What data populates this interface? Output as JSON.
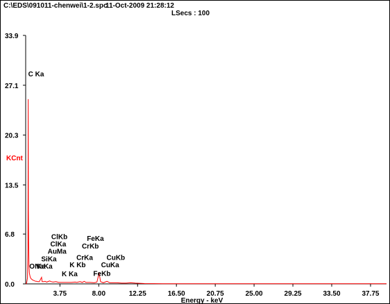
{
  "header": {
    "file_path": "C:\\EDS\\091011-chenwei\\1-2.spc",
    "timestamp": "11-Oct-2009 21:28:12",
    "lsecs": "LSecs : 100"
  },
  "colors": {
    "spectrum": "#ff0000",
    "ylabel": "#ff0000",
    "axis": "#000000",
    "text": "#000000"
  },
  "chart_data": {
    "type": "line",
    "title": "",
    "xlabel": "Energy - keV",
    "ylabel": "KCnt",
    "xlim": [
      0,
      39.5
    ],
    "ylim": [
      0,
      33.9
    ],
    "xticks": [
      "3.75",
      "8.00",
      "12.25",
      "16.50",
      "20.75",
      "25.00",
      "29.25",
      "33.50",
      "37.75"
    ],
    "xtick_values": [
      3.75,
      8.0,
      12.25,
      16.5,
      20.75,
      25.0,
      29.25,
      33.5,
      37.75
    ],
    "yticks": [
      "0.0",
      "6.8",
      "13.5",
      "20.3",
      "27.1",
      "33.9"
    ],
    "ytick_values": [
      0.0,
      6.8,
      13.5,
      20.3,
      27.1,
      33.9
    ],
    "series": [
      {
        "x": [
          0.0,
          0.1,
          0.2,
          0.25,
          0.28,
          0.3,
          0.33,
          0.36,
          0.4,
          0.45,
          0.5,
          0.55,
          0.6,
          0.7,
          0.8,
          0.9,
          1.0,
          1.1,
          1.2,
          1.3,
          1.5,
          1.74,
          1.8,
          2.0,
          2.12,
          2.3,
          2.62,
          2.8,
          3.0,
          3.31,
          3.6,
          4.0,
          4.5,
          5.0,
          5.41,
          5.6,
          5.95,
          6.2,
          6.4,
          6.6,
          7.06,
          7.5,
          7.8,
          8.04,
          8.2,
          8.5,
          8.9,
          9.2,
          9.6,
          10.0,
          10.5,
          11.0,
          11.5,
          12.0,
          13.0,
          15.0,
          20.0,
          25.0,
          30.0,
          35.0,
          39.5
        ],
        "y": [
          0.0,
          0.1,
          0.8,
          5.0,
          25.2,
          10.0,
          5.5,
          2.5,
          1.5,
          1.2,
          0.9,
          0.8,
          0.7,
          0.6,
          0.5,
          0.45,
          0.4,
          0.35,
          0.35,
          0.3,
          0.3,
          0.9,
          0.3,
          0.3,
          0.35,
          0.25,
          0.4,
          0.3,
          0.25,
          0.3,
          0.2,
          0.2,
          0.2,
          0.2,
          0.25,
          0.2,
          0.3,
          0.2,
          0.35,
          0.2,
          0.2,
          0.15,
          0.25,
          1.5,
          0.3,
          0.15,
          0.35,
          0.15,
          0.15,
          0.15,
          0.1,
          0.1,
          0.15,
          0.1,
          0.05,
          0.03,
          0.02,
          0.02,
          0.02,
          0.02,
          0.02
        ]
      }
    ],
    "peak_labels": [
      {
        "text": "C Ka",
        "x": 0.28,
        "y": 28.3
      },
      {
        "text": "ClKb",
        "x": 2.8,
        "y": 6.1
      },
      {
        "text": "ClKa",
        "x": 2.7,
        "y": 5.1
      },
      {
        "text": "AuMa",
        "x": 2.4,
        "y": 4.1
      },
      {
        "text": "SiKa",
        "x": 1.7,
        "y": 3.1
      },
      {
        "text": "O Ka",
        "x": 0.4,
        "y": 2.1
      },
      {
        "text": "NaKa",
        "x": 1.0,
        "y": 2.1
      },
      {
        "text": "K Kb",
        "x": 4.8,
        "y": 2.25
      },
      {
        "text": "K Ka",
        "x": 3.95,
        "y": 1.05
      },
      {
        "text": "FeKa",
        "x": 6.7,
        "y": 5.85
      },
      {
        "text": "CrKb",
        "x": 6.15,
        "y": 4.85
      },
      {
        "text": "CrKa",
        "x": 5.55,
        "y": 3.25
      },
      {
        "text": "CuKb",
        "x": 8.85,
        "y": 3.25
      },
      {
        "text": "CuKa",
        "x": 8.25,
        "y": 2.25
      },
      {
        "text": "FeKb",
        "x": 7.4,
        "y": 1.1
      }
    ]
  }
}
